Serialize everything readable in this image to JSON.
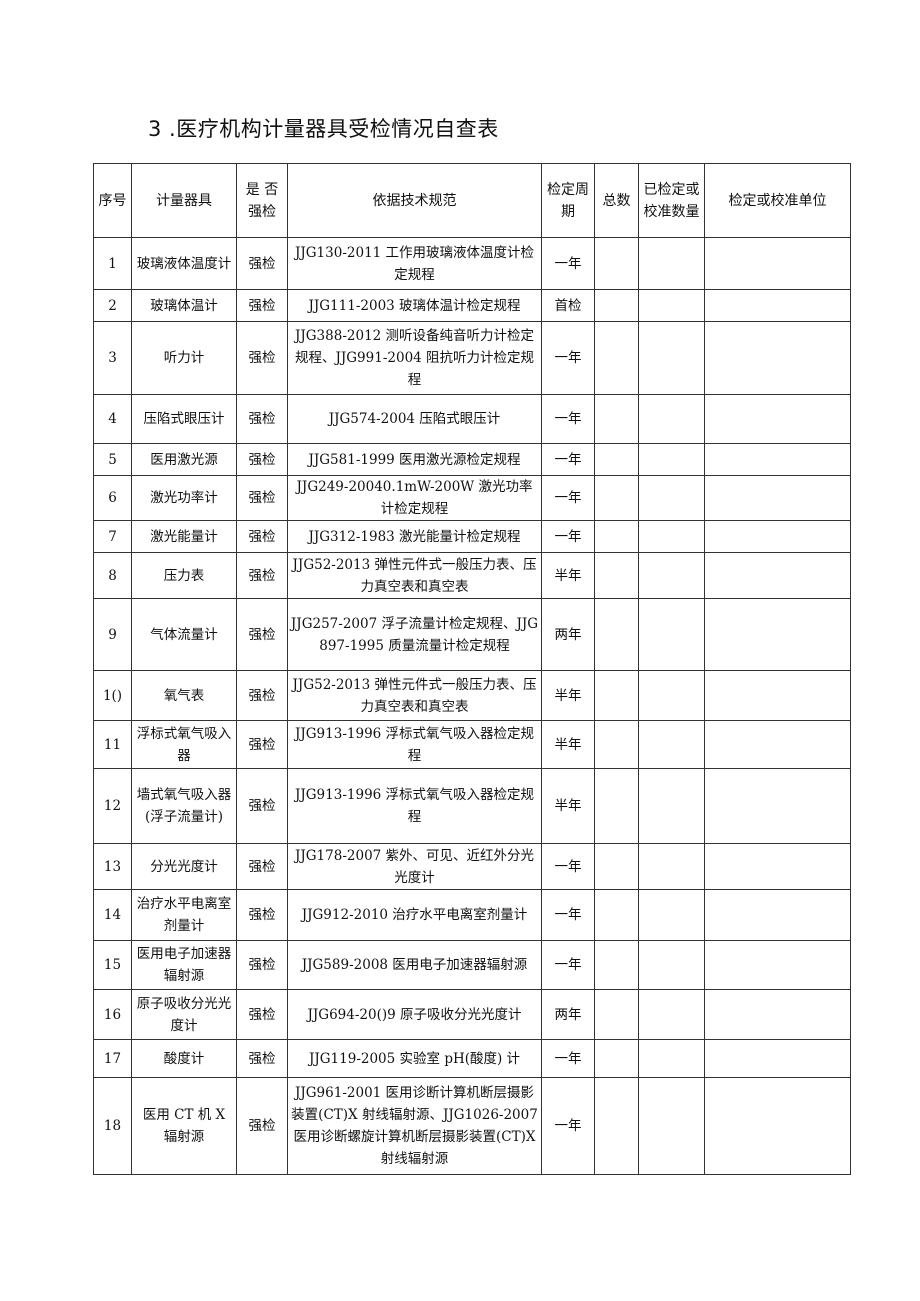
{
  "title": "3 .医疗机构计量器具受检情况自查表",
  "headers": [
    "序号",
    "计量器具",
    "是 否强检",
    "依据技术规范",
    "检定周期",
    "总数",
    "已检定或校准数量",
    "检定或校准单位"
  ],
  "rows": [
    {
      "no": "1",
      "name": "玻璃液体温度计",
      "forced": "强检",
      "spec": "JJG130-2011 工作用玻璃液体温度计检定规程",
      "cycle": "一年"
    },
    {
      "no": "2",
      "name": "玻璃体温计",
      "forced": "强检",
      "spec": "JJG111-2003 玻璃体温计检定规程",
      "cycle": "首检"
    },
    {
      "no": "3",
      "name": "听力计",
      "forced": "强检",
      "spec": "JJG388-2012 测听设备纯音听力计检定规程、JJG991-2004 阻抗听力计检定规程",
      "cycle": "一年"
    },
    {
      "no": "4",
      "name": "压陷式眼压计",
      "forced": "强检",
      "spec": "JJG574-2004 压陷式眼压计",
      "cycle": "一年"
    },
    {
      "no": "5",
      "name": "医用激光源",
      "forced": "强检",
      "spec": "JJG581-1999 医用激光源检定规程",
      "cycle": "一年"
    },
    {
      "no": "6",
      "name": "激光功率计",
      "forced": "强检",
      "spec": "JJG249-20040.1mW-200W 激光功率计检定规程",
      "cycle": "一年"
    },
    {
      "no": "7",
      "name": "激光能量计",
      "forced": "强检",
      "spec": "JJG312-1983 激光能量计检定规程",
      "cycle": "一年"
    },
    {
      "no": "8",
      "name": "压力表",
      "forced": "强检",
      "spec": "JJG52-2013 弹性元件式一般压力表、压力真空表和真空表",
      "cycle": "半年"
    },
    {
      "no": "9",
      "name": "气体流量计",
      "forced": "强检",
      "spec": "JJG257-2007 浮子流量计检定规程、JJG897-1995 质量流量计检定规程",
      "cycle": "两年"
    },
    {
      "no": "1()",
      "name": "氧气表",
      "forced": "强检",
      "spec": "JJG52-2013 弹性元件式一般压力表、压力真空表和真空表",
      "cycle": "半年"
    },
    {
      "no": "11",
      "name": "浮标式氧气吸入器",
      "forced": "强检",
      "spec": "JJG913-1996 浮标式氧气吸入器检定规程",
      "cycle": "半年"
    },
    {
      "no": "12",
      "name": "墙式氧气吸入器(浮子流量计)",
      "forced": "强检",
      "spec": "JJG913-1996 浮标式氧气吸入器检定规程",
      "cycle": "半年"
    },
    {
      "no": "13",
      "name": "分光光度计",
      "forced": "强检",
      "spec": "JJG178-2007 紫外、可见、近红外分光光度计",
      "cycle": "一年"
    },
    {
      "no": "14",
      "name": "治疗水平电离室剂量计",
      "forced": "强检",
      "spec": "JJG912-2010 治疗水平电离室剂量计",
      "cycle": "一年"
    },
    {
      "no": "15",
      "name": "医用电子加速器辐射源",
      "forced": "强检",
      "spec": "JJG589-2008 医用电子加速器辐射源",
      "cycle": "一年"
    },
    {
      "no": "16",
      "name": "原子吸收分光光度计",
      "forced": "强检",
      "spec": "JJG694-20()9 原子吸收分光光度计",
      "cycle": "两年"
    },
    {
      "no": "17",
      "name": "酸度计",
      "forced": "强检",
      "spec": "JJG119-2005 实验室 pH(酸度) 计",
      "cycle": "一年"
    },
    {
      "no": "18",
      "name": "医用 CT 机 X 辐射源",
      "forced": "强检",
      "spec": "JJG961-2001 医用诊断计算机断层摄影装置(CT)X 射线辐射源、JJG1026-2007 医用诊断螺旋计算机断层摄影装置(CT)X 射线辐射源",
      "cycle": "一年"
    }
  ]
}
